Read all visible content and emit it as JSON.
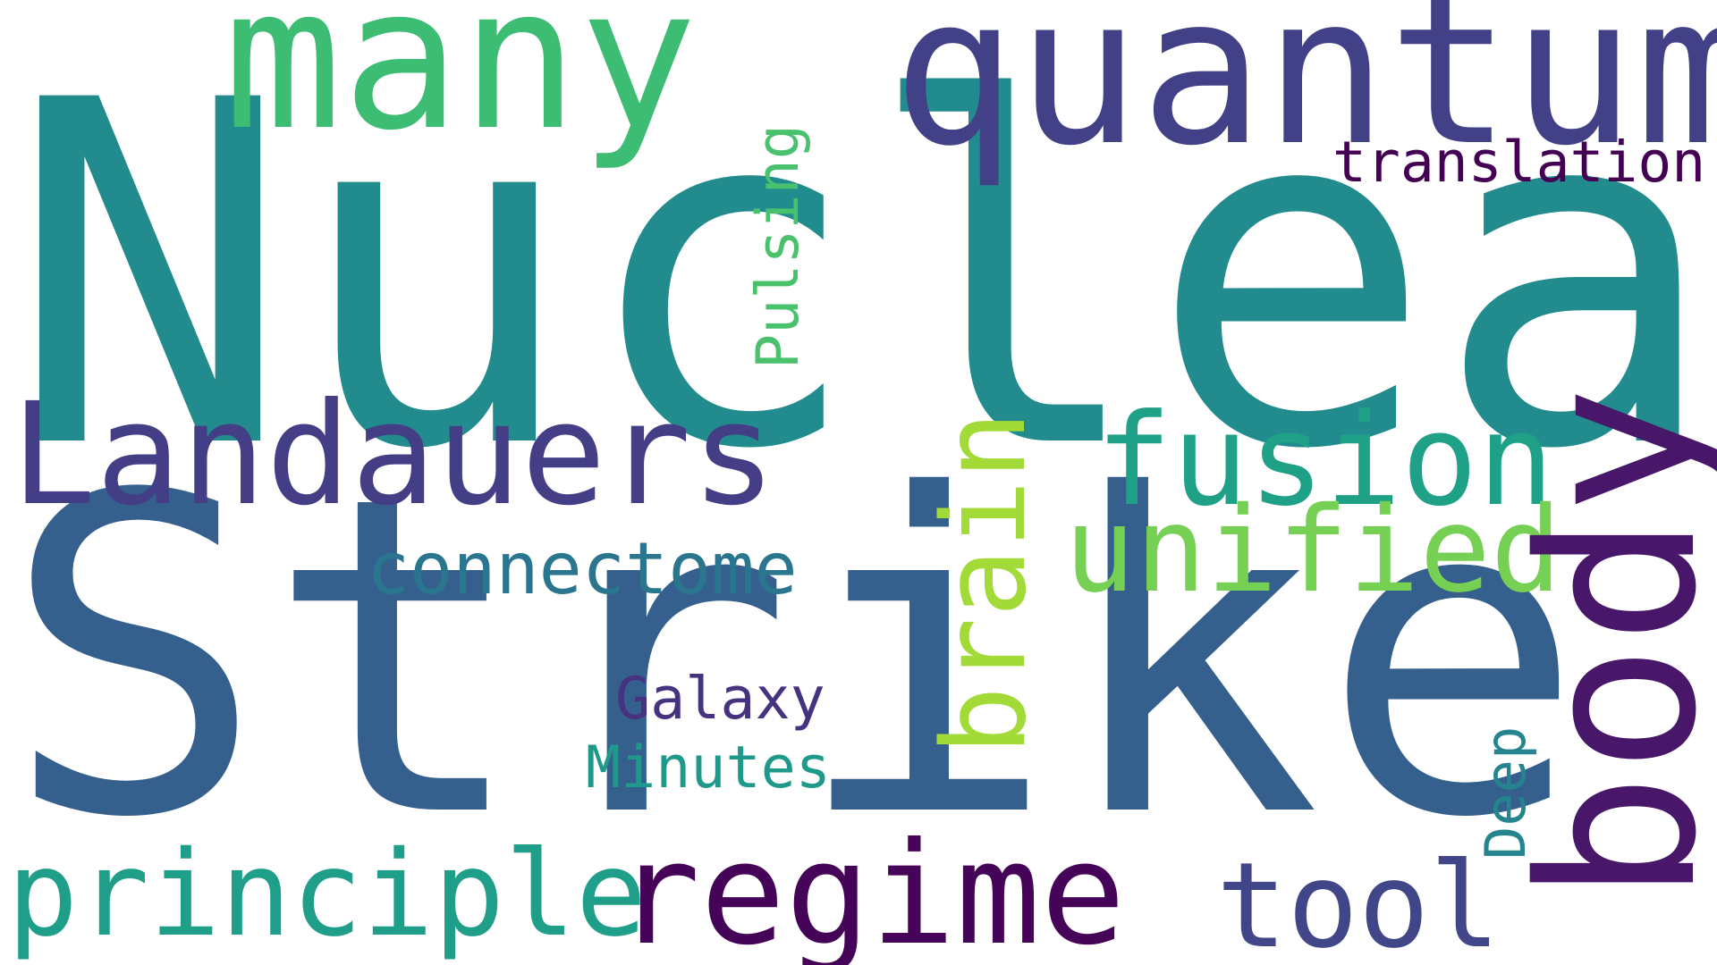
{
  "words": {
    "nuclear": {
      "text": "Nuclear",
      "color": "#228b8d"
    },
    "strike": {
      "text": "Strike",
      "color": "#35608d"
    },
    "quantum": {
      "text": "quantum",
      "color": "#424086"
    },
    "many": {
      "text": "many",
      "color": "#3dbc74"
    },
    "landauers": {
      "text": "Landauers",
      "color": "#433e85"
    },
    "fusion": {
      "text": "fusion",
      "color": "#1fa188"
    },
    "unified": {
      "text": "unified",
      "color": "#75d054"
    },
    "brain": {
      "text": "brain",
      "color": "#a2da37"
    },
    "body": {
      "text": "body",
      "color": "#481769"
    },
    "connectome": {
      "text": "connectome",
      "color": "#2a768e"
    },
    "galaxy": {
      "text": "Galaxy",
      "color": "#46337f"
    },
    "minutes": {
      "text": "Minutes",
      "color": "#1f9a8a"
    },
    "pulsing": {
      "text": "Pulsing",
      "color": "#4ac16d"
    },
    "translation": {
      "text": "translation",
      "color": "#440154"
    },
    "principle": {
      "text": "principle",
      "color": "#1f9e89"
    },
    "regime": {
      "text": "regime",
      "color": "#450457"
    },
    "tool": {
      "text": "tool",
      "color": "#404688"
    },
    "deep": {
      "text": "Deep",
      "color": "#25848e"
    }
  }
}
